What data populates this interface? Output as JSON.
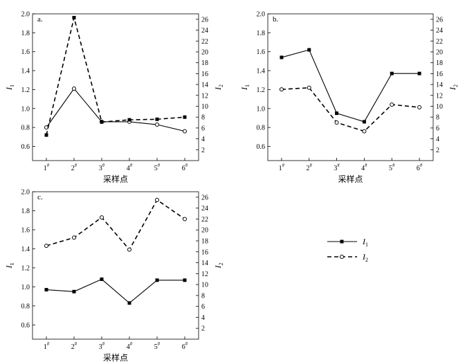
{
  "chart_data": [
    {
      "type": "line",
      "panel_label": "a.",
      "xlabel": "采样点",
      "categories": [
        "1",
        "2",
        "3",
        "4",
        "5",
        "6"
      ],
      "category_suffix": "#",
      "y1label": "I",
      "y1label_sub": "1",
      "y2label": "I",
      "y2label_sub": "2",
      "y1lim": [
        0.45,
        2.0
      ],
      "y1ticks": [
        0.6,
        0.8,
        1.0,
        1.2,
        1.4,
        1.6,
        1.8,
        2.0
      ],
      "y2lim": [
        0,
        27
      ],
      "y2ticks": [
        2,
        4,
        6,
        8,
        10,
        12,
        14,
        16,
        18,
        20,
        22,
        24,
        26
      ],
      "series": [
        {
          "axis": "left",
          "style": "solid",
          "marker": "circle-open",
          "values": [
            0.8,
            1.21,
            0.86,
            0.86,
            0.83,
            0.76
          ]
        },
        {
          "axis": "right",
          "style": "dashed",
          "marker": "square-filled",
          "values": [
            4.7,
            26.3,
            7.1,
            7.5,
            7.6,
            8.0
          ]
        }
      ]
    },
    {
      "type": "line",
      "panel_label": "b.",
      "xlabel": "采样点",
      "categories": [
        "1",
        "2",
        "3",
        "4",
        "5",
        "6"
      ],
      "category_suffix": "#",
      "y1label": "I",
      "y1label_sub": "1",
      "y2label": "I",
      "y2label_sub": "2",
      "y1lim": [
        0.45,
        2.0
      ],
      "y1ticks": [
        0.6,
        0.8,
        1.0,
        1.2,
        1.4,
        1.6,
        1.8,
        2.0
      ],
      "y2lim": [
        0,
        27
      ],
      "y2ticks": [
        2,
        4,
        6,
        8,
        10,
        12,
        14,
        16,
        18,
        20,
        22,
        24,
        26
      ],
      "series": [
        {
          "axis": "left",
          "style": "solid",
          "marker": "square-filled",
          "values": [
            1.54,
            1.62,
            0.95,
            0.86,
            1.37,
            1.37
          ]
        },
        {
          "axis": "right",
          "style": "dashed",
          "marker": "circle-open",
          "values": [
            13.1,
            13.4,
            7.0,
            5.4,
            10.3,
            9.8
          ]
        }
      ]
    },
    {
      "type": "line",
      "panel_label": "c.",
      "xlabel": "采样点",
      "categories": [
        "1",
        "2",
        "3",
        "4",
        "5",
        "6"
      ],
      "category_suffix": "#",
      "y1label": "I",
      "y1label_sub": "1",
      "y2label": "I",
      "y2label_sub": "2",
      "y1lim": [
        0.45,
        2.0
      ],
      "y1ticks": [
        0.6,
        0.8,
        1.0,
        1.2,
        1.4,
        1.6,
        1.8,
        2.0
      ],
      "y2lim": [
        0,
        27
      ],
      "y2ticks": [
        2,
        4,
        6,
        8,
        10,
        12,
        14,
        16,
        18,
        20,
        22,
        24,
        26
      ],
      "series": [
        {
          "axis": "left",
          "style": "solid",
          "marker": "square-filled",
          "values": [
            0.97,
            0.95,
            1.08,
            0.83,
            1.07,
            1.07
          ]
        },
        {
          "axis": "right",
          "style": "dashed",
          "marker": "circle-open",
          "values": [
            17.1,
            18.6,
            22.3,
            16.4,
            25.5,
            22.0
          ]
        }
      ]
    }
  ],
  "legend": {
    "placement": "right",
    "items": [
      {
        "label": "I",
        "sub": "1",
        "style": "solid",
        "marker": "square-filled"
      },
      {
        "label": "I",
        "sub": "2",
        "style": "dashed",
        "marker": "circle-open"
      }
    ]
  }
}
